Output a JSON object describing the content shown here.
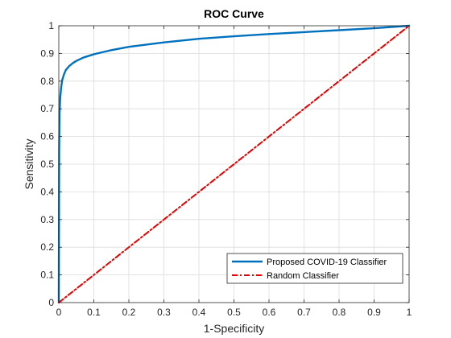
{
  "chart_data": {
    "type": "line",
    "title": "ROC Curve",
    "xlabel": "1-Specificity",
    "ylabel": "Sensitivity",
    "xlim": [
      0,
      1
    ],
    "ylim": [
      0,
      1
    ],
    "xticks": [
      "0",
      "0.1",
      "0.2",
      "0.3",
      "0.4",
      "0.5",
      "0.6",
      "0.7",
      "0.8",
      "0.9",
      "1"
    ],
    "yticks": [
      "0",
      "0.1",
      "0.2",
      "0.3",
      "0.4",
      "0.5",
      "0.6",
      "0.7",
      "0.8",
      "0.9",
      "1"
    ],
    "grid": true,
    "legend_position": "bottom-right",
    "series": [
      {
        "name": "Proposed COVID-19 Classifier",
        "color": "#0072BD",
        "style": "solid",
        "x": [
          0,
          0.0005,
          0.001,
          0.002,
          0.004,
          0.007,
          0.01,
          0.015,
          0.02,
          0.03,
          0.04,
          0.05,
          0.07,
          0.1,
          0.15,
          0.2,
          0.3,
          0.4,
          0.5,
          0.6,
          0.7,
          0.8,
          0.9,
          1.0
        ],
        "y": [
          0,
          0.3,
          0.55,
          0.68,
          0.74,
          0.78,
          0.805,
          0.825,
          0.84,
          0.855,
          0.865,
          0.873,
          0.885,
          0.897,
          0.912,
          0.924,
          0.94,
          0.953,
          0.962,
          0.97,
          0.977,
          0.984,
          0.991,
          1.0
        ]
      },
      {
        "name": "Random Classifier",
        "color": "#E60000",
        "style": "dashdot",
        "x": [
          0,
          1
        ],
        "y": [
          0,
          1
        ]
      }
    ]
  }
}
